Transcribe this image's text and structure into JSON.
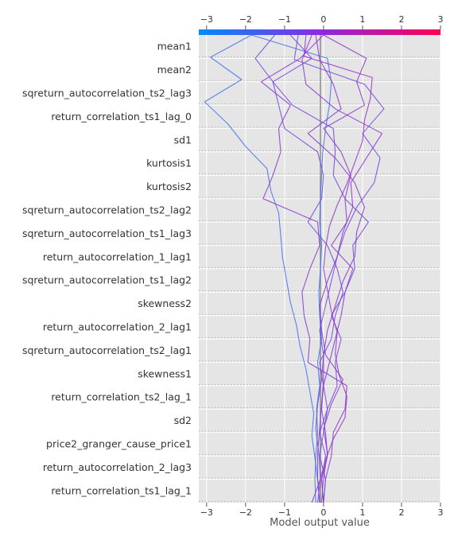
{
  "chart_data": {
    "type": "line",
    "xlabel": "Model output value",
    "xlim": [
      -3.2,
      3.0
    ],
    "xticks": [
      -3,
      -2,
      -1,
      0,
      1,
      2,
      3
    ],
    "base_value": -0.08,
    "features": [
      "mean1",
      "mean2",
      "sqreturn_autocorrelation_ts2_lag3",
      "return_correlation_ts1_lag_0",
      "sd1",
      "kurtosis1",
      "kurtosis2",
      "sqreturn_autocorrelation_ts2_lag2",
      "sqreturn_autocorrelation_ts1_lag3",
      "return_autocorrelation_1_lag1",
      "sqreturn_autocorrelation_ts1_lag2",
      "skewness2",
      "return_autocorrelation_2_lag1",
      "sqreturn_autocorrelation_ts2_lag1",
      "skewness1",
      "return_correlation_ts2_lag_1",
      "sd2",
      "price2_granger_cause_price1",
      "return_autocorrelation_2_lag3",
      "return_correlation_ts1_lag_1"
    ],
    "colorbar": {
      "colors": [
        "#008bfb",
        "#8a2be2",
        "#ff0052"
      ],
      "min": -3,
      "max": 3
    },
    "series": [
      {
        "values": [
          -0.2,
          -0.22,
          -0.2,
          -0.15,
          -0.18,
          -0.1,
          -0.15,
          -0.05,
          -0.1,
          -0.12,
          -0.08,
          -0.05,
          -0.1,
          -0.08,
          -0.05,
          -0.02,
          0.05,
          0.15,
          0.2,
          0.1,
          -1.85
        ],
        "color": "#4a78f0"
      },
      {
        "values": [
          -0.1,
          -0.15,
          -0.22,
          -0.3,
          -0.25,
          -0.35,
          -0.45,
          -0.6,
          -0.7,
          -0.85,
          -0.95,
          -1.05,
          -1.1,
          -1.15,
          -1.35,
          -1.45,
          -2.0,
          -2.45,
          -3.05,
          -2.1,
          -2.9,
          -1.85
        ],
        "color": "#4a78f0"
      },
      {
        "values": [
          -0.15,
          -0.08,
          -0.12,
          -0.2,
          -0.15,
          -0.05,
          0.0,
          -0.1,
          0.05,
          0.2,
          0.35,
          0.55,
          0.85,
          1.3,
          1.45,
          1.0,
          1.55,
          1.05,
          -0.75,
          -0.65
        ],
        "color": "#7a4ee0"
      },
      {
        "values": [
          0.0,
          0.05,
          -0.1,
          0.0,
          0.1,
          0.0,
          -0.1,
          0.2,
          0.3,
          0.5,
          0.35,
          0.1,
          -0.4,
          -0.05,
          0.0,
          -0.15,
          -1.0,
          -1.15,
          -1.3,
          -0.3,
          -0.85
        ],
        "color": "#7a4ee0"
      },
      {
        "values": [
          0.0,
          -0.05,
          0.05,
          -0.1,
          0.1,
          0.35,
          0.3,
          0.45,
          0.2,
          0.55,
          0.8,
          0.75,
          1.15,
          0.55,
          0.25,
          0.3,
          0.25,
          -0.8,
          -1.3,
          -1.75,
          -1.25
        ],
        "color": "#7a4ee0"
      },
      {
        "values": [
          0.0,
          -0.05,
          0.1,
          0.05,
          -0.05,
          0.0,
          0.15,
          0.3,
          0.45,
          0.55,
          0.75,
          0.2,
          0.6,
          0.55,
          0.7,
          0.45,
          0.0,
          1.05,
          0.85,
          1.1,
          0.0
        ],
        "color": "#8a3fd0"
      },
      {
        "values": [
          -0.05,
          0.0,
          0.1,
          0.0,
          0.2,
          0.5,
          0.05,
          -0.05,
          -0.1,
          0.1,
          0.35,
          0.5,
          0.75,
          0.7,
          1.1,
          1.5,
          0.3,
          -0.45,
          -0.55,
          -0.3
        ],
        "color": "#8a3fd0"
      },
      {
        "values": [
          0.0,
          0.05,
          0.2,
          0.25,
          0.55,
          0.6,
          -0.4,
          -0.35,
          -0.5,
          -0.55,
          -0.35,
          -0.1,
          -0.15,
          -1.55,
          -1.3,
          -1.1,
          -1.15,
          -0.85,
          -1.6,
          -0.6,
          0.0
        ],
        "color": "#8a3fd0"
      },
      {
        "values": [
          -0.1,
          -0.15,
          -0.15,
          -0.1,
          -0.05,
          0.0,
          0.0,
          0.1,
          0.3,
          0.5,
          0.8,
          0.85,
          1.05,
          0.8,
          0.3,
          -0.4,
          0.45,
          0.25,
          -0.1,
          -0.2
        ],
        "color": "#8a3fd0"
      },
      {
        "values": [
          -0.3,
          -0.1,
          0.05,
          0.25,
          0.55,
          0.6,
          0.4,
          0.3,
          0.35,
          0.2,
          0.1,
          0.0,
          0.05,
          0.15,
          0.35,
          0.6,
          0.8,
          1.0,
          1.05,
          1.2,
          1.25,
          -0.5,
          -0.45
        ],
        "color": "#9a3ac8"
      }
    ]
  }
}
